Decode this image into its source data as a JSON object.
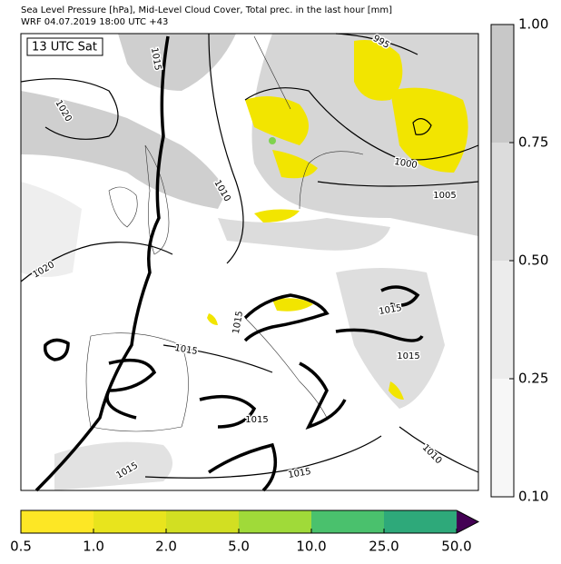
{
  "header": {
    "title": [
      "Sea Level Pressure [hPa], Mid-Level Cloud Cover, Total prec. in the last hour [mm]",
      "WRF 04.07.2019 18:00 UTC +43"
    ]
  },
  "map": {
    "time_label": "13 UTC Sat",
    "contour_labels": [
      995,
      1015,
      1020,
      1010,
      1000,
      1005,
      1020,
      1015,
      1015,
      1015,
      1015,
      1015,
      1010,
      1015,
      1015
    ]
  },
  "cloud_colorbar": {
    "ticks": [
      {
        "value": 0.1,
        "label": "0.10"
      },
      {
        "value": 0.25,
        "label": "0.25"
      },
      {
        "value": 0.5,
        "label": "0.50"
      },
      {
        "value": 0.75,
        "label": "0.75"
      },
      {
        "value": 1,
        "label": "1.00"
      }
    ],
    "colors": [
      "#f7f7f7",
      "#ececec",
      "#dcdcdc",
      "#c8c8c8"
    ]
  },
  "precip_colorbar": {
    "ticks": [
      0.5,
      {
        "value": 1,
        "label": "1.0"
      },
      {
        "value": 2,
        "label": "2.0"
      },
      {
        "value": 5,
        "label": "5.0"
      },
      {
        "value": 10,
        "label": "10.0"
      },
      {
        "value": 25,
        "label": "25.0"
      },
      {
        "value": 50,
        "label": "50.0"
      }
    ],
    "colors": [
      "#fde725",
      "#e8e41d",
      "#d2df22",
      "#a0da39",
      "#4ac16d",
      "#2ea97a",
      "#3b528b"
    ],
    "extend_color": "#440154"
  }
}
